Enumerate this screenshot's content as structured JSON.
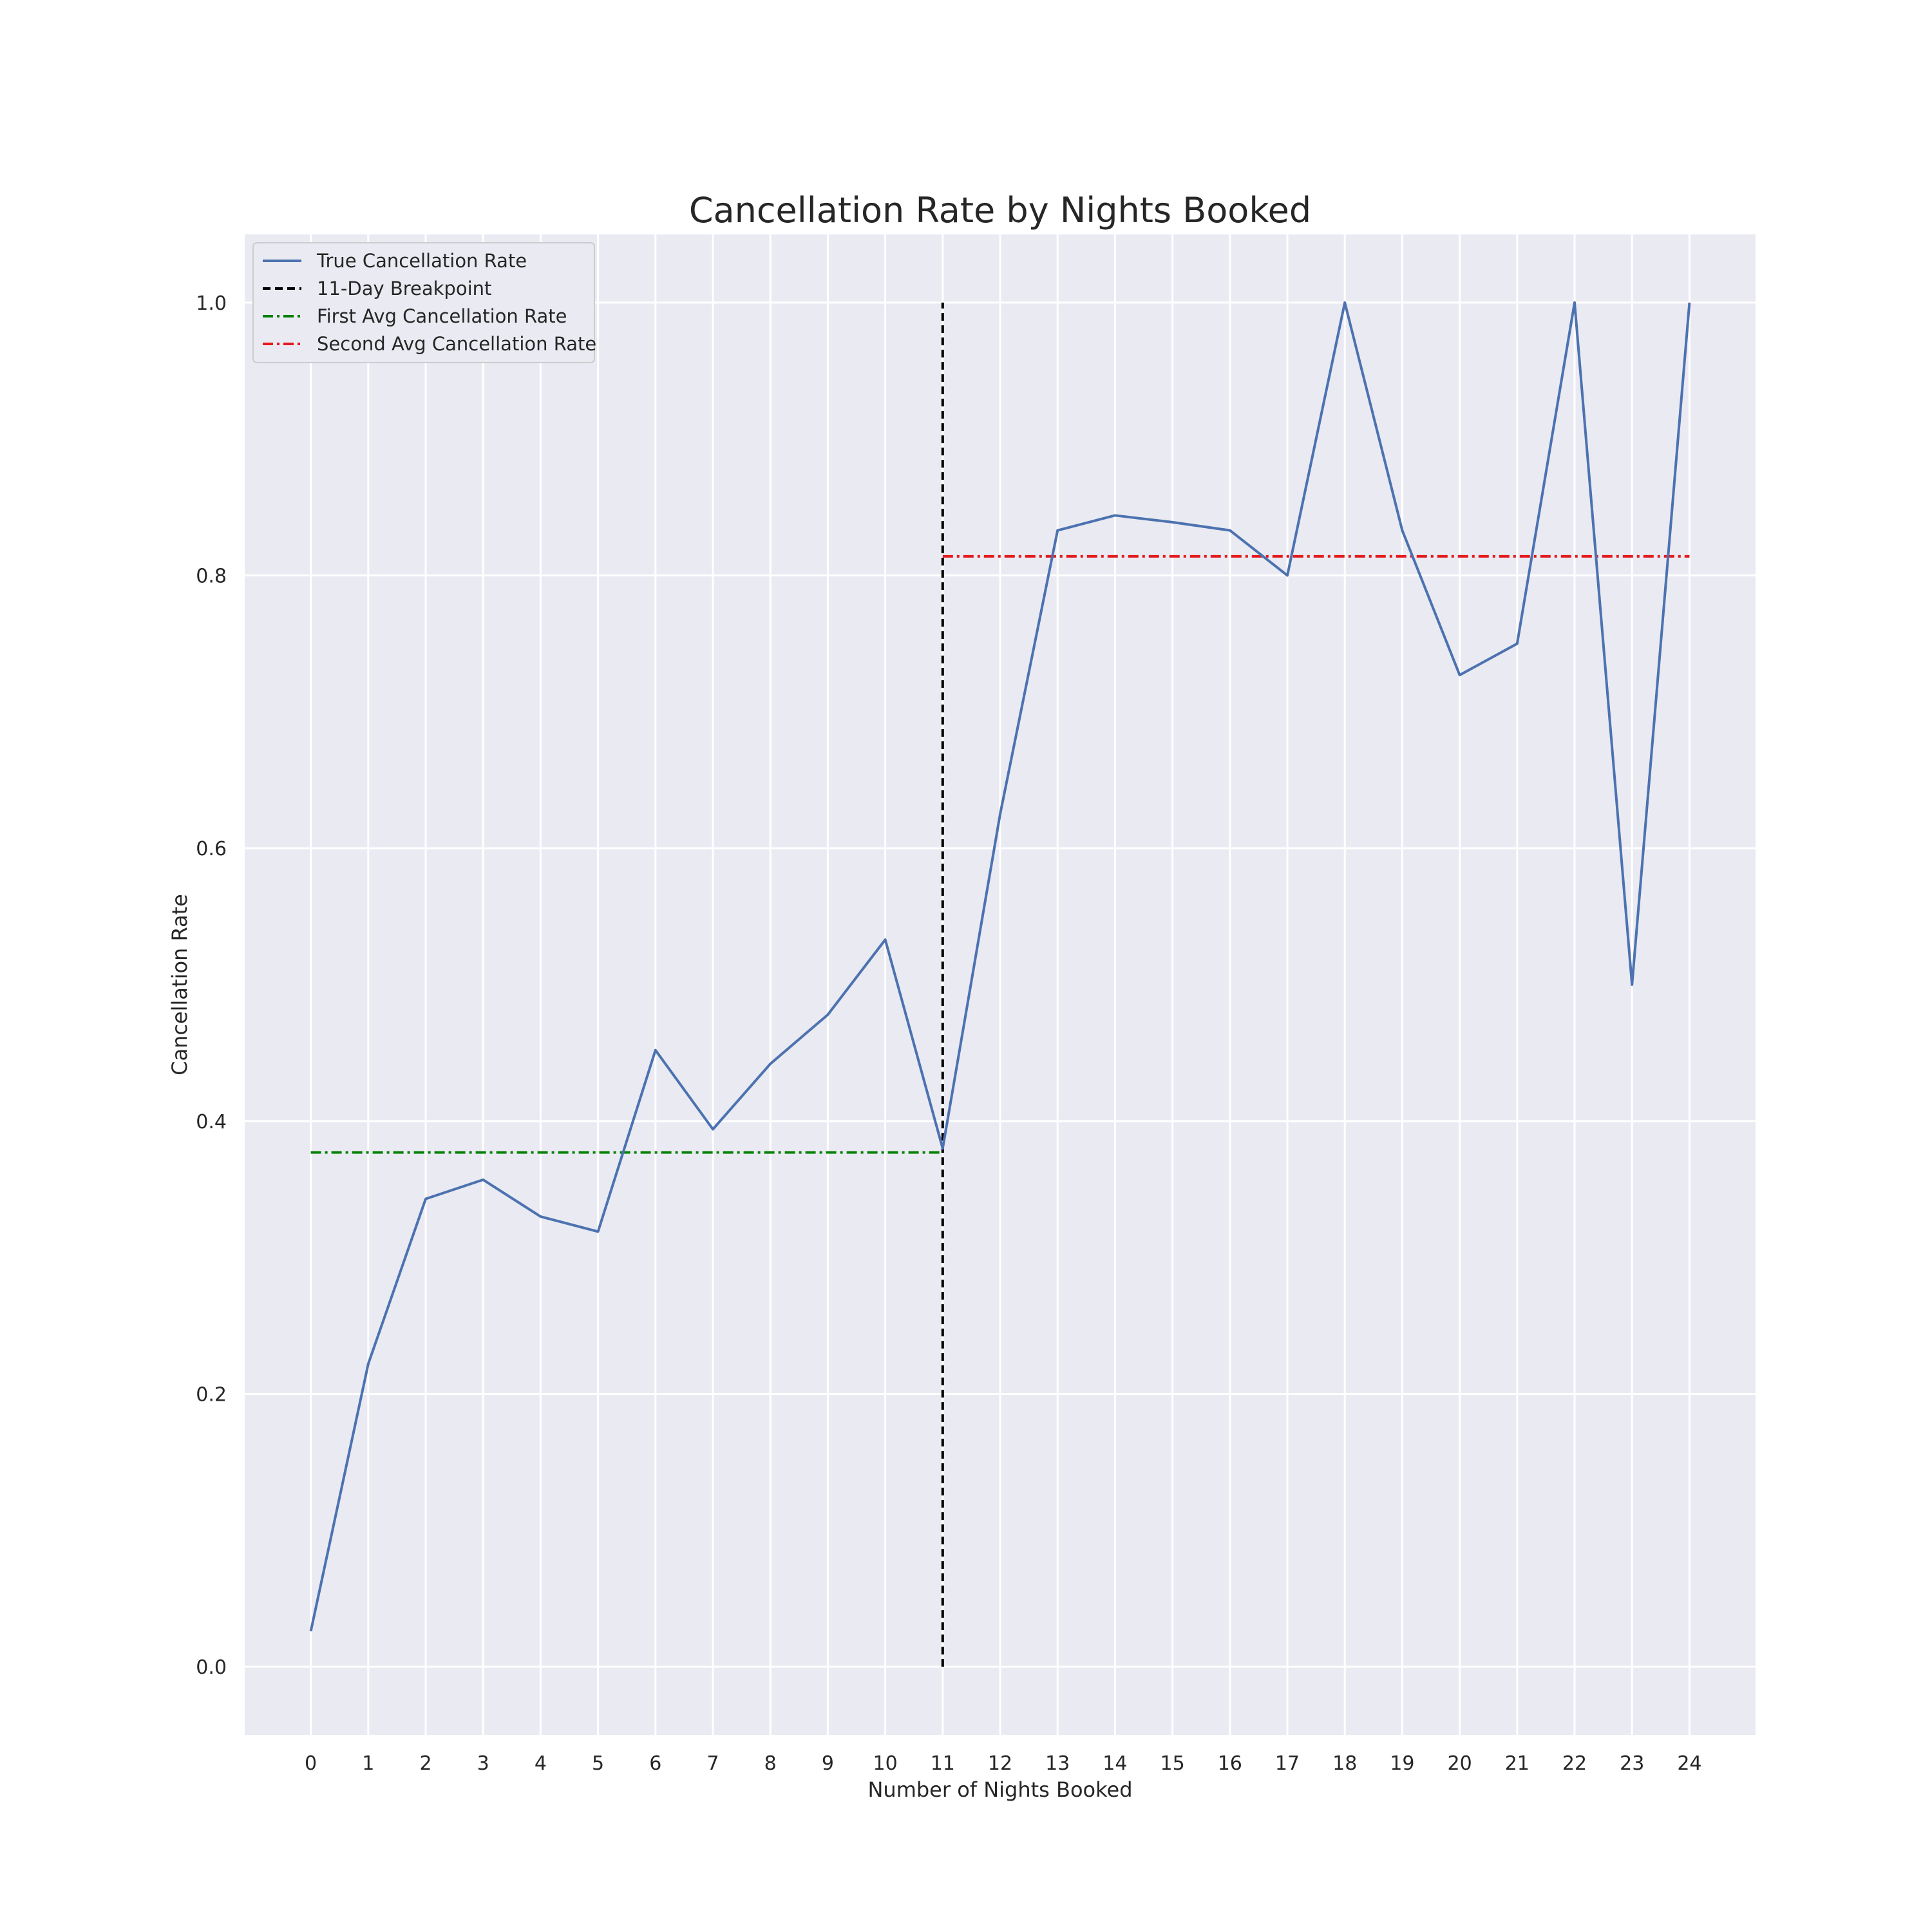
{
  "chart_data": {
    "type": "line",
    "title": "Cancellation Rate by Nights Booked",
    "xlabel": "Number of Nights Booked",
    "ylabel": "Cancellation Rate",
    "xlim": [
      -1.15,
      25.15
    ],
    "ylim": [
      -0.05,
      1.05
    ],
    "x_ticks": [
      0,
      1,
      2,
      3,
      4,
      5,
      6,
      7,
      8,
      9,
      10,
      11,
      12,
      13,
      14,
      15,
      16,
      17,
      18,
      19,
      20,
      21,
      22,
      23,
      24
    ],
    "y_ticks": [
      0.0,
      0.2,
      0.4,
      0.6,
      0.8,
      1.0
    ],
    "y_tick_labels": [
      "0.0",
      "0.2",
      "0.4",
      "0.6",
      "0.8",
      "1.0"
    ],
    "grid": true,
    "legend_position": "top-left",
    "series": [
      {
        "name": "True Cancellation Rate",
        "style": "solid",
        "color": "#4C72B0",
        "x": [
          0,
          1,
          2,
          3,
          4,
          5,
          6,
          7,
          8,
          9,
          10,
          11,
          12,
          13,
          14,
          15,
          16,
          17,
          18,
          19,
          20,
          21,
          22,
          23,
          24
        ],
        "y": [
          0.026,
          0.222,
          0.343,
          0.357,
          0.33,
          0.319,
          0.452,
          0.394,
          0.442,
          0.478,
          0.533,
          0.38,
          0.625,
          0.833,
          0.844,
          0.839,
          0.833,
          0.8,
          1.0,
          0.833,
          0.727,
          0.75,
          1.0,
          0.5,
          1.0
        ]
      },
      {
        "name": "11-Day Breakpoint",
        "style": "dashed",
        "color": "#000000",
        "x": [
          11,
          11
        ],
        "y": [
          0.0,
          1.0
        ]
      },
      {
        "name": "First Avg Cancellation Rate",
        "style": "dashdot",
        "color": "#008000",
        "x": [
          0,
          11
        ],
        "y": [
          0.377,
          0.377
        ]
      },
      {
        "name": "Second Avg Cancellation Rate",
        "style": "dashdot",
        "color": "#E41A1C",
        "x": [
          11,
          24
        ],
        "y": [
          0.814,
          0.814
        ]
      }
    ]
  }
}
